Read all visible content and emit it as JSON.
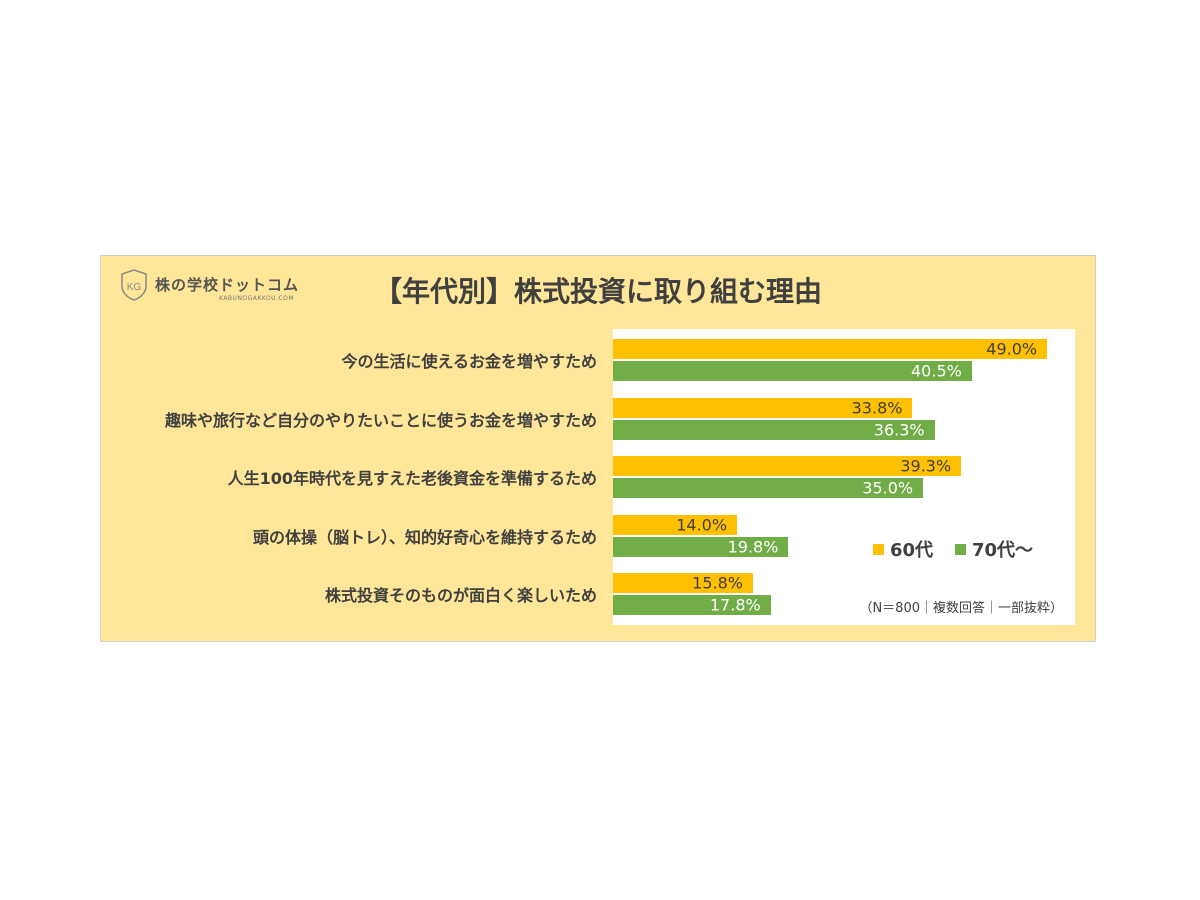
{
  "logo": {
    "name": "株の学校ドットコム",
    "sub": "KABUNOGAKKOU.COM",
    "mark": "KG"
  },
  "chart_data": {
    "type": "bar",
    "orientation": "horizontal",
    "title": "【年代別】株式投資に取り組む理由",
    "categories": [
      "今の生活に使えるお金を増やすため",
      "趣味や旅行など自分のやりたいことに使うお金を増やすため",
      "人生100年時代を見すえた老後資金を準備するため",
      "頭の体操（脳トレ）、知的好奇心を維持するため",
      "株式投資そのものが面白く楽しいため"
    ],
    "series": [
      {
        "name": "60代",
        "color": "#FFC000",
        "values": [
          49.0,
          33.8,
          39.3,
          14.0,
          15.8
        ],
        "labels": [
          "49.0%",
          "33.8%",
          "39.3%",
          "14.0%",
          "15.8%"
        ]
      },
      {
        "name": "70代～",
        "color": "#70AD47",
        "values": [
          40.5,
          36.3,
          35.0,
          19.8,
          17.8
        ],
        "labels": [
          "40.5%",
          "36.3%",
          "35.0%",
          "19.8%",
          "17.8%"
        ]
      }
    ],
    "xlim": [
      0,
      52
    ],
    "grid": false,
    "legend": "bottom-right",
    "note": "（N＝800｜複数回答｜一部抜粋）"
  }
}
